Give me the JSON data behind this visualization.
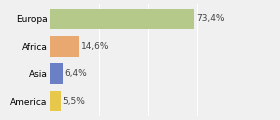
{
  "categories": [
    "America",
    "Asia",
    "Africa",
    "Europa"
  ],
  "values": [
    5.5,
    6.4,
    14.6,
    73.4
  ],
  "labels": [
    "5,5%",
    "6,4%",
    "14,6%",
    "73,4%"
  ],
  "colors": [
    "#e8c84a",
    "#6b7fc4",
    "#e8a870",
    "#b5c98a"
  ],
  "xlim": [
    0,
    100
  ],
  "background_color": "#f0f0f0",
  "bar_height": 0.75,
  "label_fontsize": 6.5,
  "tick_fontsize": 6.5,
  "grid_color": "#ffffff",
  "grid_ticks": [
    25,
    50,
    75,
    100
  ]
}
